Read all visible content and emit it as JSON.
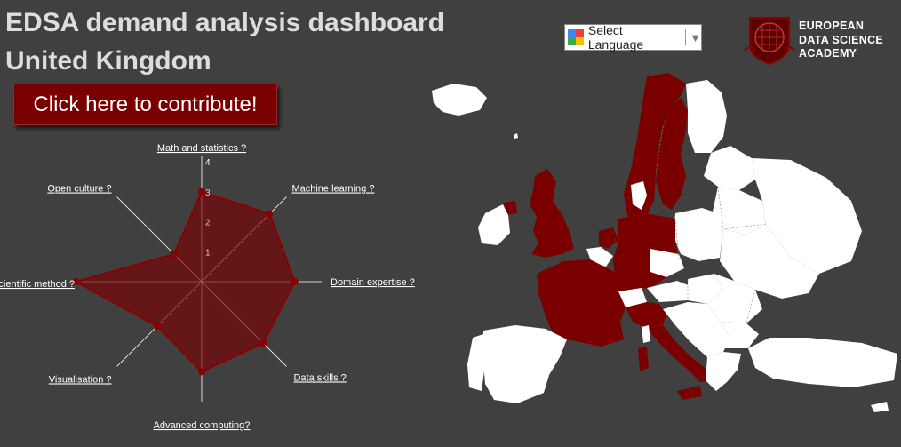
{
  "header": {
    "title_line1": "EDSA demand analysis dashboard",
    "title_line2": "United Kingdom"
  },
  "contribute_label": "Click here to contribute!",
  "language": {
    "label": "Select Language"
  },
  "academy": {
    "line1": "EUROPEAN",
    "line2": "DATA SCIENCE",
    "line3": "ACADEMY"
  },
  "colors": {
    "background": "#404040",
    "accent": "#7a0000",
    "map_land": "#ffffff"
  },
  "chart_data": {
    "type": "radar",
    "axes": [
      "Math and statistics",
      "Machine learning",
      "Domain expertise",
      "Data skills",
      "Advanced computing",
      "Visualisation",
      "Scientific method",
      "Open culture"
    ],
    "axis_labels": [
      "Math and statistics ?",
      "Machine learning ?",
      "Domain expertise ?",
      "Data skills ?",
      "Advanced computing?",
      "Visualisation ?",
      "Scientific method ?",
      "Open culture ?"
    ],
    "values": [
      3,
      3.2,
      3.1,
      2.9,
      3,
      2.1,
      4.2,
      1.3
    ],
    "scale_ticks": [
      1,
      2,
      3,
      4
    ],
    "range": [
      0,
      4
    ]
  },
  "map": {
    "highlighted": [
      "Norway",
      "Sweden",
      "United Kingdom",
      "Ireland",
      "France",
      "Belgium",
      "Netherlands",
      "Germany",
      "Italy",
      "Spain"
    ],
    "selected": "United Kingdom"
  }
}
